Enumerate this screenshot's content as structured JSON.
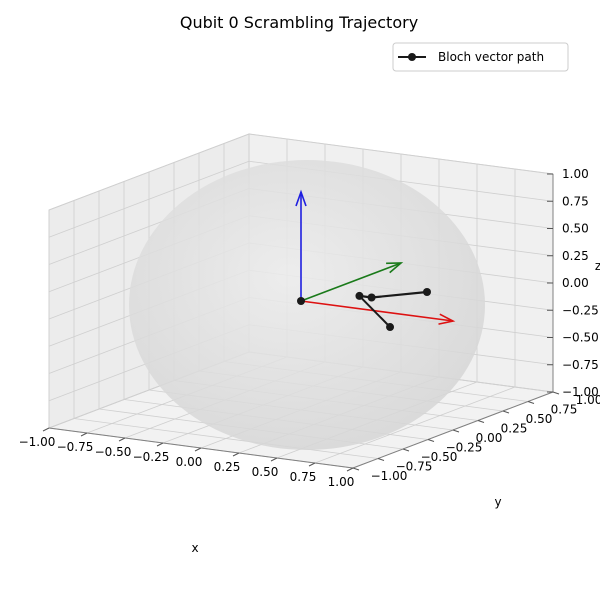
{
  "chart_data": {
    "type": "line",
    "title": "Qubit 0 Scrambling Trajectory",
    "xlabel": "x",
    "ylabel": "y",
    "zlabel": "z",
    "xlim": [
      -1.0,
      1.0
    ],
    "ylim": [
      -1.0,
      1.0
    ],
    "zlim": [
      -1.0,
      1.0
    ],
    "x_ticks": [
      "−1.00",
      "−0.75",
      "−0.50",
      "−0.25",
      "0.00",
      "0.25",
      "0.50",
      "0.75",
      "1.00"
    ],
    "y_ticks": [
      "−1.00",
      "−0.75",
      "−0.50",
      "−0.25",
      "0.00",
      "0.25",
      "0.50",
      "0.75",
      "1.00"
    ],
    "z_ticks": [
      "−1.00",
      "−0.75",
      "−0.50",
      "−0.25",
      "0.00",
      "0.25",
      "0.50",
      "0.75",
      "1.00"
    ],
    "grid": true,
    "legend_position": "top-right",
    "series": [
      {
        "name": "Bloch vector path",
        "color": "#1a1a1a",
        "marker": "circle",
        "points": [
          {
            "x": 0.0,
            "y": 0.0,
            "z": 0.0
          },
          {
            "x": 0.22,
            "y": 0.25,
            "z": 0.0
          },
          {
            "x": 0.3,
            "y": 0.25,
            "z": 0.0
          },
          {
            "x": 0.5,
            "y": 0.5,
            "z": 0.0
          },
          {
            "x": 0.77,
            "y": -0.28,
            "z": 0.0
          }
        ]
      }
    ],
    "basis_vectors": [
      {
        "axis": "x",
        "color": "#dd1111",
        "vector": [
          1,
          0,
          0
        ]
      },
      {
        "axis": "y",
        "color": "#1a7a1a",
        "vector": [
          0,
          1,
          0
        ]
      },
      {
        "axis": "z",
        "color": "#1f1fe0",
        "vector": [
          0,
          0,
          1
        ]
      }
    ],
    "sphere": {
      "radius": 1.0,
      "color": "#dcdcdc"
    }
  }
}
